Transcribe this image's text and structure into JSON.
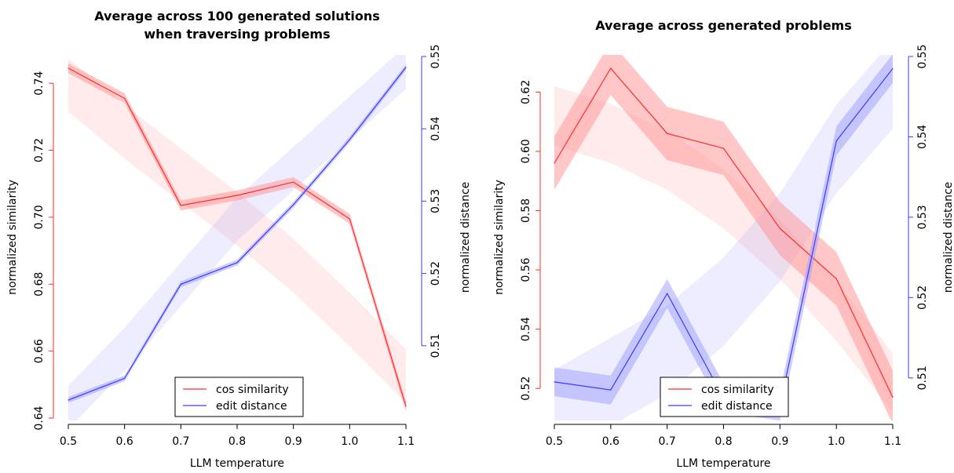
{
  "colors": {
    "cos": "#ff2a2a",
    "edit": "#3a3aff",
    "cos_band": "#ff9090",
    "edit_band": "#9c9cff"
  },
  "chart_data": [
    {
      "type": "line",
      "title_lines": [
        "Average across 100 generated solutions",
        "when traversing problems"
      ],
      "xlabel": "LLM temperature",
      "ylabel_left": "normalized similarity",
      "ylabel_right": "normalized distance",
      "x": [
        0.5,
        0.6,
        0.7,
        0.8,
        0.9,
        1.0,
        1.1
      ],
      "xlim": [
        0.5,
        1.1
      ],
      "xticks": [
        "0.5",
        "0.6",
        "0.7",
        "0.8",
        "0.9",
        "1.0",
        "1.1"
      ],
      "ylim_left": [
        0.64,
        0.748
      ],
      "yticks_left": [
        "0.64",
        "0.66",
        "0.68",
        "0.70",
        "0.72",
        "0.74"
      ],
      "ylim_right": [
        0.5,
        0.55
      ],
      "yticks_right": [
        "0.51",
        "0.52",
        "0.53",
        "0.54",
        "0.55"
      ],
      "legend": [
        "cos similarity",
        "edit distance"
      ],
      "legend_position": "bottom-center",
      "series": [
        {
          "name": "cos similarity",
          "axis": "left",
          "values": [
            0.7445,
            0.7355,
            0.7035,
            0.7065,
            0.7105,
            0.6995,
            0.6435
          ],
          "band_halfwidth": 0.0015
        },
        {
          "name": "edit distance",
          "axis": "right",
          "values": [
            0.5025,
            0.5055,
            0.5185,
            0.5215,
            0.5295,
            0.5385,
            0.5485
          ],
          "band_halfwidth": 0.0004
        }
      ],
      "trend_bands": [
        {
          "axis": "left",
          "series": "cos similarity",
          "values": [
            0.7395,
            0.7255,
            0.7125,
            0.6995,
            0.6855,
            0.6695,
            0.6525
          ],
          "halfwidth": 0.008
        },
        {
          "axis": "right",
          "series": "edit distance",
          "values": [
            0.5015,
            0.5095,
            0.5185,
            0.5275,
            0.5345,
            0.5415,
            0.5485
          ],
          "halfwidth": 0.003
        }
      ]
    },
    {
      "type": "line",
      "title_lines": [
        "Average across generated problems"
      ],
      "xlabel": "LLM temperature",
      "ylabel_left": "normalized similarity",
      "ylabel_right": "normalized distance",
      "x": [
        0.5,
        0.6,
        0.7,
        0.8,
        0.9,
        1.0,
        1.1
      ],
      "xlim": [
        0.5,
        1.1
      ],
      "xticks": [
        "0.5",
        "0.6",
        "0.7",
        "0.8",
        "0.9",
        "1.0",
        "1.1"
      ],
      "ylim_left": [
        0.51,
        0.632
      ],
      "yticks_left": [
        "0.52",
        "0.54",
        "0.56",
        "0.58",
        "0.60",
        "0.62"
      ],
      "ylim_right": [
        0.505,
        0.55
      ],
      "yticks_right": [
        "0.51",
        "0.52",
        "0.53",
        "0.54",
        "0.55"
      ],
      "legend": [
        "cos similarity",
        "edit distance"
      ],
      "legend_position": "bottom-center",
      "series": [
        {
          "name": "cos similarity",
          "axis": "left",
          "values": [
            0.596,
            0.628,
            0.606,
            0.601,
            0.574,
            0.557,
            0.517
          ],
          "band_halfwidth": 0.009
        },
        {
          "name": "edit distance",
          "axis": "right",
          "values": [
            0.5095,
            0.5085,
            0.5205,
            0.5075,
            0.5065,
            0.5395,
            0.5485
          ],
          "band_halfwidth": 0.0018
        }
      ],
      "trend_bands": [
        {
          "axis": "left",
          "series": "cos similarity",
          "values": [
            0.612,
            0.606,
            0.597,
            0.584,
            0.567,
            0.546,
            0.522
          ],
          "halfwidth": 0.01
        },
        {
          "axis": "right",
          "series": "edit distance",
          "values": [
            0.5055,
            0.5095,
            0.5135,
            0.5195,
            0.5275,
            0.5385,
            0.5465
          ],
          "halfwidth": 0.0055
        }
      ]
    }
  ]
}
